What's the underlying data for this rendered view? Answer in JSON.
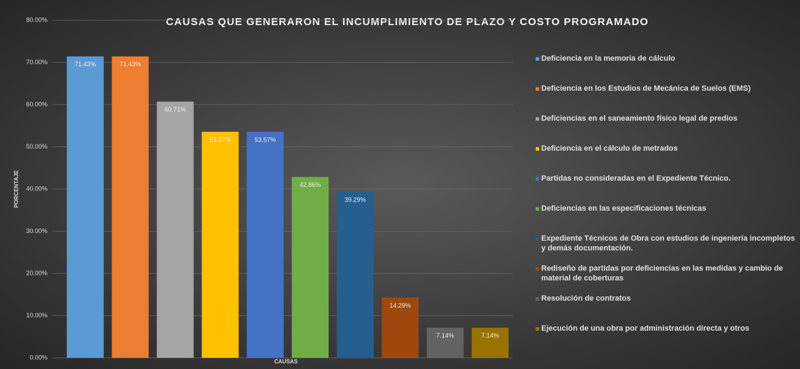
{
  "chart_data": {
    "type": "bar",
    "title": "CAUSAS QUE GENERARON EL INCUMPLIMIENTO DE PLAZO Y COSTO PROGRAMADO",
    "x_label": "CAUSAS",
    "y_label": "PORCENTAJE",
    "categories": [
      "Deficiencia en la memoria de cálculo",
      "Deficiencia en los Estudios de Mecánica de Suelos (EMS)",
      "Deficiencias en el saneamiento físico legal de predios",
      "Deficiencia en el cálculo de metrados",
      "Partidas no consideradas en el Expediente Técnico.",
      "Deficiencias en las especificaciones técnicas",
      "Expediente Técnicos de Obra con estudios de ingeniería incompletos y demás documentación.",
      "Rediseño de partidas por deficiencias en las medidas y cambio de material de coberturas",
      "Resolución de contratos",
      "Ejecución de una obra por administración directa y otros"
    ],
    "values": [
      71.43,
      71.43,
      60.71,
      53.57,
      53.57,
      42.86,
      39.29,
      14.29,
      7.14,
      7.14
    ],
    "value_labels": [
      "71.43%",
      "71.43%",
      "60.71%",
      "53.57%",
      "53.57%",
      "42.86%",
      "39.29%",
      "14.29%",
      "7.14%",
      "7.14%"
    ],
    "colors": [
      "#5b9bd5",
      "#ed7d31",
      "#a5a5a5",
      "#ffc000",
      "#4472c4",
      "#70ad47",
      "#255e91",
      "#9e480e",
      "#636363",
      "#997300"
    ],
    "ylim": [
      0,
      80
    ],
    "yticks": [
      {
        "value": 0,
        "label": "0.00%"
      },
      {
        "value": 10,
        "label": "10.00%"
      },
      {
        "value": 20,
        "label": "20.00%"
      },
      {
        "value": 30,
        "label": "30.00%"
      },
      {
        "value": 40,
        "label": "40.00%"
      },
      {
        "value": 50,
        "label": "50.00%"
      },
      {
        "value": 60,
        "label": "60.00%"
      },
      {
        "value": 70,
        "label": "70.00%"
      },
      {
        "value": 80,
        "label": "80.00%"
      }
    ],
    "grid": true,
    "legend": "right"
  }
}
